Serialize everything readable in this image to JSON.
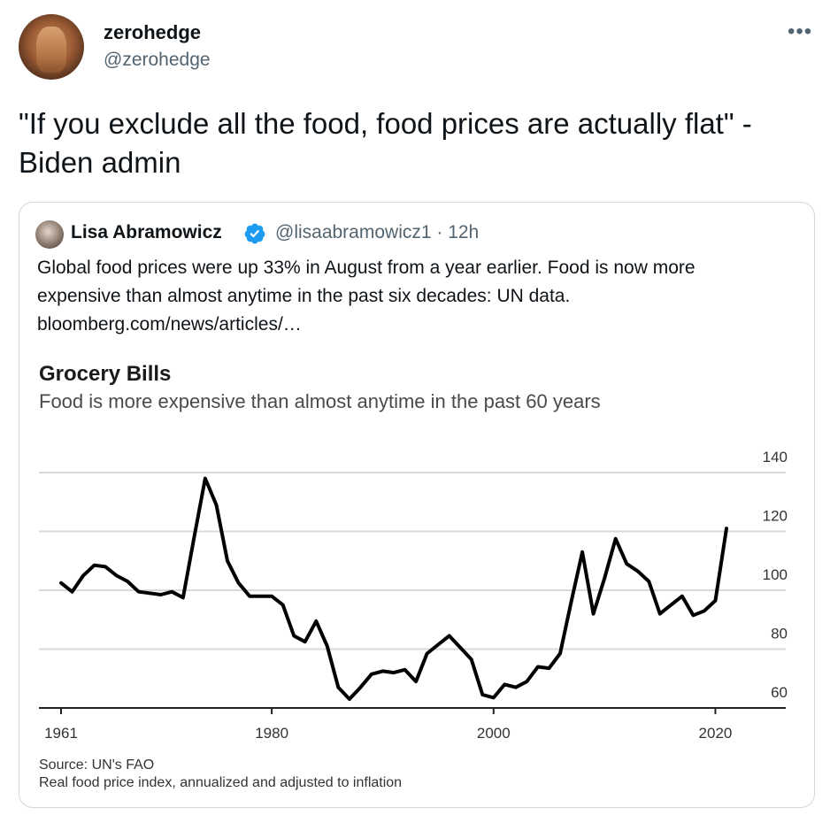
{
  "tweet": {
    "author_name": "zerohedge",
    "author_handle": "@zerohedge",
    "text": "\"If you exclude all the food, food prices are actually flat\" - Biden admin",
    "more_icon": "more-dots-icon"
  },
  "quote": {
    "author_name": "Lisa Abramowicz",
    "verified_icon": "verified-badge-icon",
    "handle_time": "@lisaabramowicz1 · 12h",
    "text_line1": "Global food prices were up 33% in August from a year earlier. Food is now more",
    "text_line2": "expensive than almost anytime in the past six decades: UN data.",
    "text_line3": "bloomberg.com/news/articles/…",
    "accent_color": "#1d9bf0"
  },
  "chart_data": {
    "type": "line",
    "title": "Grocery Bills",
    "subtitle": "Food is more expensive than almost anytime in the past 60 years",
    "source": "Source: UN's FAO",
    "note": "Real food price index, annualized and adjusted to inflation",
    "xlabel": "",
    "ylabel": "",
    "xlim": [
      1961,
      2021
    ],
    "ylim": [
      60,
      140
    ],
    "x_ticks": [
      "1961",
      "1980",
      "2000",
      "2020"
    ],
    "y_ticks": [
      "140",
      "120",
      "100",
      "80",
      "60"
    ],
    "grid": true,
    "line_color": "#000000",
    "series": [
      {
        "x": [
          1961,
          1962,
          1963,
          1964,
          1965,
          1966,
          1967,
          1968,
          1969,
          1970,
          1971,
          1972,
          1973,
          1974,
          1975,
          1976,
          1977,
          1978,
          1979,
          1980,
          1981,
          1982,
          1983,
          1984,
          1985,
          1986,
          1987,
          1988,
          1989,
          1990,
          1991,
          1992,
          1993,
          1994,
          1995,
          1996,
          1997,
          1998,
          1999,
          2000,
          2001,
          2002,
          2003,
          2004,
          2005,
          2006,
          2007,
          2008,
          2009,
          2010,
          2011,
          2012,
          2013,
          2014,
          2015,
          2016,
          2017,
          2018,
          2019,
          2020,
          2021
        ],
        "values": [
          102.5,
          99.5,
          105,
          108.5,
          108,
          105,
          103,
          99.5,
          99,
          98.5,
          99.5,
          97.5,
          118,
          138,
          129,
          110,
          102.5,
          98,
          98,
          98,
          95,
          84.5,
          82.5,
          89.5,
          81,
          67,
          63,
          67,
          71.5,
          72.5,
          72,
          73,
          69,
          78.5,
          81.5,
          84.5,
          80.5,
          76.5,
          64.5,
          63.5,
          68,
          67,
          69,
          74,
          73.5,
          78.5,
          96,
          113,
          92,
          104,
          117.5,
          109,
          106.5,
          103,
          92,
          95,
          98,
          91.5,
          93,
          96.5,
          121
        ]
      }
    ]
  }
}
